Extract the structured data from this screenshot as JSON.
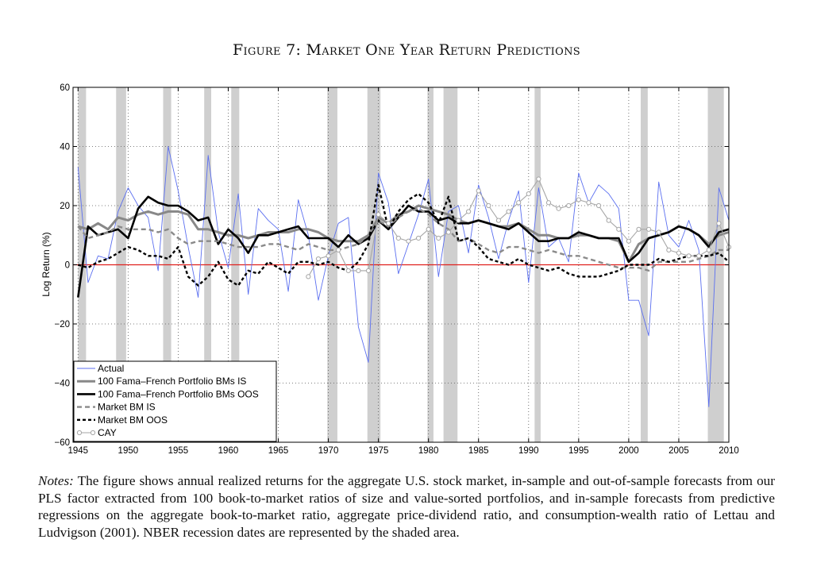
{
  "figure": {
    "title": "Figure 7: Market One Year Return Predictions",
    "notes_label": "Notes:",
    "notes_text": "The figure shows annual realized returns for the aggregate U.S. stock market, in-sample and out-of-sample forecasts from our PLS factor extracted from 100 book-to-market ratios of size and value-sorted portfolios, and in-sample forecasts from predictive regressions on the aggregate book-to-market ratio, aggregate price-dividend ratio, and consumption-wealth ratio of Lettau and Ludvigson (2001). NBER recession dates are represented by the shaded area."
  },
  "colors": {
    "actual": "#5b6ff0",
    "bm100_is": "#888888",
    "bm100_oos": "#000000",
    "market_is": "#8a8a8a",
    "market_oos": "#000000",
    "cay": "#a6a6a6",
    "zero_line": "#e0201e",
    "recession": "#cfcfcf"
  },
  "chart_data": {
    "type": "line",
    "title": "",
    "xlabel": "",
    "ylabel": "Log Return (%)",
    "xlim": [
      1944.5,
      2010
    ],
    "ylim": [
      -60,
      60
    ],
    "xticks": [
      1945,
      1950,
      1955,
      1960,
      1965,
      1970,
      1975,
      1980,
      1985,
      1990,
      1995,
      2000,
      2005,
      2010
    ],
    "yticks": [
      -60,
      -40,
      -20,
      0,
      20,
      40,
      60
    ],
    "grid": true,
    "legend_position": "bottom-left",
    "recessions": [
      [
        1945,
        1945.8
      ],
      [
        1948.8,
        1949.8
      ],
      [
        1953.5,
        1954.3
      ],
      [
        1957.6,
        1958.3
      ],
      [
        1960.3,
        1961.1
      ],
      [
        1969.9,
        1970.9
      ],
      [
        1973.9,
        1975.2
      ],
      [
        1979.9,
        1980.5
      ],
      [
        1981.5,
        1982.9
      ],
      [
        1990.6,
        1991.2
      ],
      [
        2001.2,
        2001.9
      ],
      [
        2007.9,
        2009.5
      ]
    ],
    "x": [
      1945,
      1946,
      1947,
      1948,
      1949,
      1950,
      1951,
      1952,
      1953,
      1954,
      1955,
      1956,
      1957,
      1958,
      1959,
      1960,
      1961,
      1962,
      1963,
      1964,
      1965,
      1966,
      1967,
      1968,
      1969,
      1970,
      1971,
      1972,
      1973,
      1974,
      1975,
      1976,
      1977,
      1978,
      1979,
      1980,
      1981,
      1982,
      1983,
      1984,
      1985,
      1986,
      1987,
      1988,
      1989,
      1990,
      1991,
      1992,
      1993,
      1994,
      1995,
      1996,
      1997,
      1998,
      1999,
      2000,
      2001,
      2002,
      2003,
      2004,
      2005,
      2006,
      2007,
      2008,
      2009,
      2010
    ],
    "series": [
      {
        "name": "Actual",
        "style": "thin",
        "values": [
          33,
          -6,
          3,
          2,
          18,
          26,
          20,
          16,
          -2,
          40,
          25,
          6,
          -11,
          37,
          11,
          -1,
          24,
          -10,
          19,
          15,
          12,
          -9,
          22,
          10,
          -12,
          3,
          14,
          16,
          -21,
          -33,
          31,
          21,
          -3,
          7,
          17,
          29,
          -4,
          18,
          20,
          4,
          27,
          16,
          2,
          15,
          25,
          -6,
          26,
          6,
          9,
          1,
          31,
          21,
          27,
          24,
          19,
          -12,
          -12,
          -24,
          28,
          10,
          6,
          15,
          5,
          -48,
          26,
          15
        ]
      },
      {
        "name": "100 Fama–French Portfolio BMs IS",
        "style": "thick-gray",
        "values": [
          13,
          12,
          14,
          12,
          16,
          15,
          17,
          18,
          17,
          18,
          18,
          17,
          12,
          12,
          11,
          10,
          10,
          9,
          10,
          11,
          11,
          11,
          12,
          12,
          11,
          9,
          8,
          8,
          8,
          10,
          16,
          14,
          17,
          18,
          20,
          19,
          18,
          17,
          15,
          14,
          15,
          14,
          13,
          13,
          14,
          12,
          10,
          10,
          9,
          9,
          10,
          10,
          9,
          9,
          8,
          1,
          7,
          9,
          10,
          11,
          13,
          12,
          10,
          7,
          10,
          11
        ]
      },
      {
        "name": "100 Fama–French Portfolio BMs OOS",
        "style": "thick-black",
        "values": [
          -11,
          13,
          10,
          11,
          12,
          9,
          19,
          23,
          21,
          20,
          20,
          18,
          15,
          16,
          7,
          12,
          9,
          4,
          10,
          10,
          11,
          12,
          13,
          9,
          9,
          9,
          6,
          10,
          7,
          9,
          15,
          12,
          16,
          20,
          18,
          18,
          15,
          16,
          14,
          14,
          15,
          14,
          13,
          12,
          14,
          11,
          8,
          8,
          9,
          9,
          11,
          10,
          9,
          9,
          9,
          1,
          4,
          9,
          10,
          11,
          13,
          12,
          10,
          6,
          11,
          12
        ]
      },
      {
        "name": "Market BM IS",
        "style": "dash-gray",
        "values": [
          13,
          9,
          10,
          11,
          13,
          12,
          12,
          12,
          11,
          12,
          9,
          7,
          8,
          8,
          8,
          7,
          6,
          6,
          6,
          7,
          7,
          6,
          5,
          7,
          6,
          5,
          5,
          6,
          7,
          10,
          15,
          13,
          16,
          18,
          19,
          17,
          14,
          12,
          8,
          9,
          7,
          5,
          4,
          6,
          6,
          5,
          4,
          5,
          4,
          3,
          3,
          2,
          1,
          0,
          -1,
          -1,
          -1,
          -2,
          1,
          1,
          1,
          1,
          2,
          3,
          5,
          5
        ]
      },
      {
        "name": "Market BM OOS",
        "style": "dash-black",
        "values": [
          0,
          -1,
          1,
          2,
          4,
          6,
          5,
          3,
          3,
          2,
          6,
          -4,
          -7,
          -4,
          1,
          -5,
          -7,
          -2,
          -3,
          1,
          -1,
          -3,
          1,
          1,
          0,
          1,
          -1,
          -2,
          1,
          7,
          27,
          12,
          18,
          22,
          24,
          21,
          14,
          23,
          8,
          9,
          6,
          2,
          1,
          0,
          2,
          0,
          -1,
          -2,
          -1,
          -3,
          -4,
          -4,
          -4,
          -3,
          -2,
          0,
          0,
          0,
          2,
          1,
          2,
          3,
          3,
          3,
          4,
          1
        ]
      },
      {
        "name": "CAY",
        "style": "thin-marker",
        "values": [
          null,
          null,
          null,
          null,
          null,
          null,
          null,
          null,
          null,
          null,
          null,
          null,
          null,
          null,
          null,
          null,
          null,
          null,
          null,
          null,
          null,
          null,
          null,
          -4,
          2,
          3,
          5,
          -2,
          -2,
          -2,
          17,
          14,
          9,
          8,
          9,
          12,
          9,
          11,
          15,
          18,
          25,
          20,
          15,
          18,
          21,
          24,
          29,
          21,
          19,
          20,
          22,
          21,
          20,
          15,
          12,
          8,
          12,
          12,
          11,
          5,
          4,
          3,
          3,
          5,
          14,
          6
        ]
      }
    ]
  }
}
